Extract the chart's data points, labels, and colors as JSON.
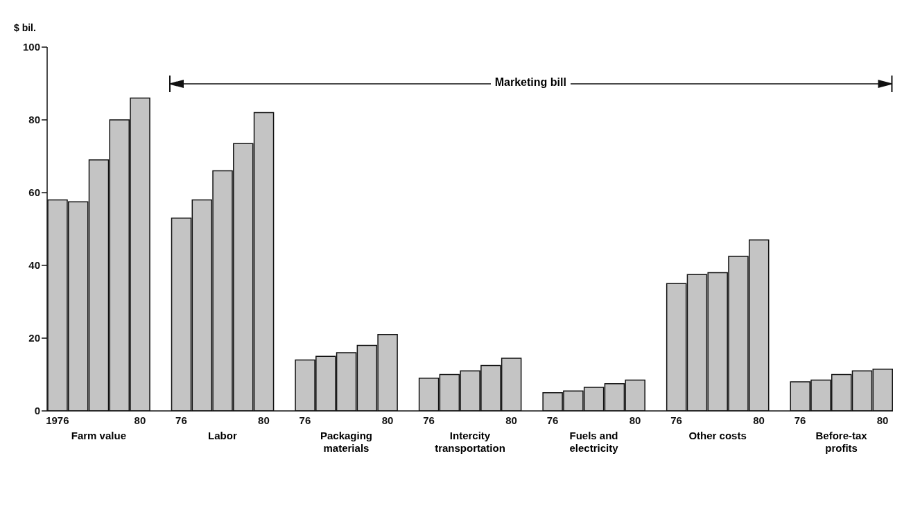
{
  "chart_data": {
    "type": "bar",
    "ylabel": "$ bil.",
    "categories": [
      "1976",
      null,
      null,
      null,
      "80",
      null,
      "76",
      null,
      null,
      null,
      "80",
      null,
      "76",
      null,
      null,
      null,
      "80",
      null,
      "76",
      null,
      null,
      null,
      "80",
      null,
      "76",
      null,
      null,
      null,
      "80",
      null,
      "76",
      null,
      null,
      null,
      "80",
      null,
      "76",
      null,
      null,
      null,
      "80"
    ],
    "values": [
      58,
      57.5,
      69,
      80,
      86,
      null,
      53,
      58,
      66,
      73.5,
      82,
      null,
      14,
      15,
      16,
      18,
      21,
      null,
      9,
      10,
      11,
      12.5,
      14.5,
      null,
      5,
      5.5,
      6.5,
      7.5,
      8.5,
      null,
      35,
      37.5,
      38,
      42.5,
      47,
      null,
      8,
      8.5,
      10,
      11,
      11.5
    ],
    "color": "#c4c4c4",
    "ylim": [
      0,
      100
    ],
    "yticks": [
      0,
      20,
      40,
      60,
      80,
      100
    ],
    "grid": false,
    "annotations": [
      "Farm value",
      "Labor",
      "Packaging materials",
      "Intercity transportation",
      "Fuels and electricity",
      "Other costs",
      "Before-tax profits",
      "Marketing bill"
    ]
  }
}
